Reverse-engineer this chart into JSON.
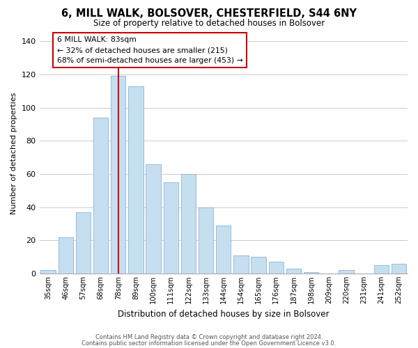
{
  "title": "6, MILL WALK, BOLSOVER, CHESTERFIELD, S44 6NY",
  "subtitle": "Size of property relative to detached houses in Bolsover",
  "xlabel": "Distribution of detached houses by size in Bolsover",
  "ylabel": "Number of detached properties",
  "bar_labels": [
    "35sqm",
    "46sqm",
    "57sqm",
    "68sqm",
    "78sqm",
    "89sqm",
    "100sqm",
    "111sqm",
    "122sqm",
    "133sqm",
    "144sqm",
    "154sqm",
    "165sqm",
    "176sqm",
    "187sqm",
    "198sqm",
    "209sqm",
    "220sqm",
    "231sqm",
    "241sqm",
    "252sqm"
  ],
  "bar_values": [
    2,
    22,
    37,
    94,
    119,
    113,
    66,
    55,
    60,
    40,
    29,
    11,
    10,
    7,
    3,
    1,
    0,
    2,
    0,
    5,
    6
  ],
  "bar_color": "#c5dff0",
  "bar_edge_color": "#8ab4d4",
  "highlight_bar_index": 4,
  "highlight_line_color": "#cc0000",
  "ylim": [
    0,
    145
  ],
  "yticks": [
    0,
    20,
    40,
    60,
    80,
    100,
    120,
    140
  ],
  "annotation_title": "6 MILL WALK: 83sqm",
  "annotation_line1": "← 32% of detached houses are smaller (215)",
  "annotation_line2": "68% of semi-detached houses are larger (453) →",
  "annotation_box_color": "#ffffff",
  "annotation_box_edge": "#cc0000",
  "footnote1": "Contains HM Land Registry data © Crown copyright and database right 2024.",
  "footnote2": "Contains public sector information licensed under the Open Government Licence v3.0.",
  "background_color": "#ffffff",
  "grid_color": "#cccccc"
}
